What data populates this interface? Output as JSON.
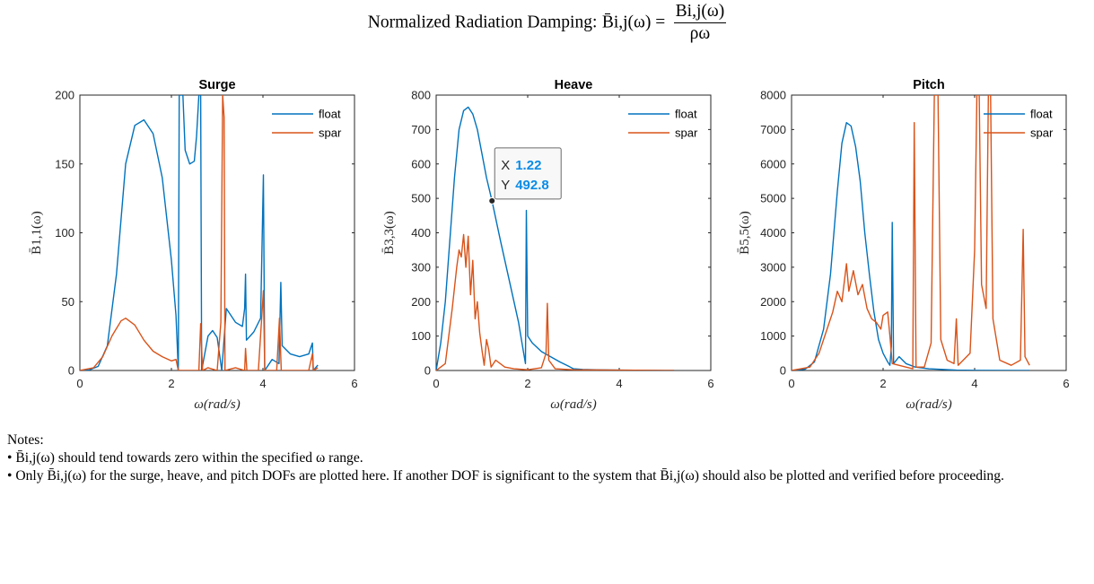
{
  "title": {
    "lead": "Normalized Radiation Damping:",
    "lhs": "B̄i,j(ω) =",
    "numerator": "Bi,j(ω)",
    "denominator": "ρω"
  },
  "colors": {
    "float": "#0072bd",
    "spar": "#d95319"
  },
  "notes": {
    "heading": "Notes:",
    "line1": "• B̄i,j(ω) should tend towards zero within the specified ω range.",
    "line2": "• Only B̄i,j(ω) for the surge, heave, and pitch DOFs are plotted here. If another DOF is significant to the system that B̄i,j(ω) should also be plotted and verified before proceeding."
  },
  "chart_data": [
    {
      "type": "line",
      "title": "Surge",
      "xlabel": "ω(rad/s)",
      "ylabel": "B̄1,1(ω)",
      "xlim": [
        0,
        6
      ],
      "ylim": [
        0,
        200
      ],
      "xticks": [
        0,
        2,
        4,
        6
      ],
      "yticks": [
        0,
        50,
        100,
        150,
        200
      ],
      "legend_position": "top-right",
      "series": [
        {
          "name": "float",
          "points": [
            [
              0,
              0
            ],
            [
              0.2,
              0.3
            ],
            [
              0.4,
              3
            ],
            [
              0.6,
              18
            ],
            [
              0.8,
              70
            ],
            [
              1.0,
              150
            ],
            [
              1.2,
              178
            ],
            [
              1.4,
              182
            ],
            [
              1.6,
              172
            ],
            [
              1.8,
              140
            ],
            [
              2.0,
              80
            ],
            [
              2.1,
              40
            ],
            [
              2.15,
              0
            ],
            [
              2.17,
              200
            ],
            [
              2.25,
              200
            ],
            [
              2.3,
              160
            ],
            [
              2.4,
              150
            ],
            [
              2.5,
              152
            ],
            [
              2.55,
              170
            ],
            [
              2.6,
              200
            ],
            [
              2.64,
              200
            ],
            [
              2.66,
              0
            ],
            [
              2.8,
              25
            ],
            [
              2.9,
              29
            ],
            [
              3.0,
              24
            ],
            [
              3.1,
              0
            ],
            [
              3.2,
              45
            ],
            [
              3.4,
              35
            ],
            [
              3.55,
              32
            ],
            [
              3.6,
              45
            ],
            [
              3.62,
              70
            ],
            [
              3.64,
              22
            ],
            [
              3.8,
              28
            ],
            [
              3.95,
              38
            ],
            [
              4.01,
              142
            ],
            [
              4.04,
              0
            ],
            [
              4.2,
              8
            ],
            [
              4.35,
              5
            ],
            [
              4.39,
              64
            ],
            [
              4.42,
              18
            ],
            [
              4.6,
              12
            ],
            [
              4.8,
              10
            ],
            [
              5.0,
              12
            ],
            [
              5.08,
              20
            ],
            [
              5.1,
              0
            ],
            [
              5.2,
              4
            ]
          ]
        },
        {
          "name": "spar",
          "points": [
            [
              0,
              0
            ],
            [
              0.3,
              2
            ],
            [
              0.5,
              10
            ],
            [
              0.7,
              25
            ],
            [
              0.9,
              36
            ],
            [
              1.0,
              38
            ],
            [
              1.2,
              33
            ],
            [
              1.4,
              22
            ],
            [
              1.6,
              14
            ],
            [
              1.8,
              10
            ],
            [
              2.0,
              7
            ],
            [
              2.1,
              8
            ],
            [
              2.15,
              0
            ],
            [
              2.6,
              0
            ],
            [
              2.64,
              34
            ],
            [
              2.68,
              0
            ],
            [
              2.8,
              2
            ],
            [
              3.0,
              0
            ],
            [
              3.08,
              35
            ],
            [
              3.12,
              200
            ],
            [
              3.15,
              184
            ],
            [
              3.17,
              0
            ],
            [
              3.4,
              2
            ],
            [
              3.6,
              0
            ],
            [
              3.62,
              16
            ],
            [
              3.65,
              0
            ],
            [
              3.9,
              0
            ],
            [
              4.01,
              58
            ],
            [
              4.04,
              0
            ],
            [
              4.3,
              0
            ],
            [
              4.36,
              38
            ],
            [
              4.4,
              0
            ],
            [
              5.0,
              0
            ],
            [
              5.08,
              12
            ],
            [
              5.1,
              0
            ],
            [
              5.2,
              2
            ]
          ]
        }
      ]
    },
    {
      "type": "line",
      "title": "Heave",
      "xlabel": "ω(rad/s)",
      "ylabel": "B̄3,3(ω)",
      "xlim": [
        0,
        6
      ],
      "ylim": [
        0,
        800
      ],
      "xticks": [
        0,
        2,
        4,
        6
      ],
      "yticks": [
        0,
        100,
        200,
        300,
        400,
        500,
        600,
        700,
        800
      ],
      "legend_position": "top-right",
      "datatip": {
        "x_label": "X",
        "x": "1.22",
        "y_label": "Y",
        "y": "492.8",
        "point": [
          1.22,
          492.8
        ]
      },
      "series": [
        {
          "name": "float",
          "points": [
            [
              0,
              0
            ],
            [
              0.1,
              80
            ],
            [
              0.2,
              200
            ],
            [
              0.3,
              380
            ],
            [
              0.4,
              560
            ],
            [
              0.5,
              700
            ],
            [
              0.6,
              755
            ],
            [
              0.7,
              765
            ],
            [
              0.8,
              745
            ],
            [
              0.9,
              700
            ],
            [
              1.0,
              630
            ],
            [
              1.1,
              560
            ],
            [
              1.22,
              493
            ],
            [
              1.4,
              380
            ],
            [
              1.6,
              260
            ],
            [
              1.8,
              140
            ],
            [
              1.9,
              60
            ],
            [
              1.95,
              20
            ],
            [
              1.97,
              465
            ],
            [
              2.0,
              100
            ],
            [
              2.1,
              80
            ],
            [
              2.3,
              55
            ],
            [
              2.5,
              40
            ],
            [
              2.7,
              25
            ],
            [
              2.9,
              12
            ],
            [
              3.0,
              5
            ],
            [
              3.2,
              3
            ],
            [
              3.5,
              2
            ],
            [
              4.0,
              1
            ],
            [
              5.0,
              0
            ],
            [
              5.2,
              0
            ]
          ]
        },
        {
          "name": "spar",
          "points": [
            [
              0,
              0
            ],
            [
              0.2,
              20
            ],
            [
              0.35,
              180
            ],
            [
              0.45,
              300
            ],
            [
              0.5,
              350
            ],
            [
              0.55,
              330
            ],
            [
              0.6,
              395
            ],
            [
              0.65,
              300
            ],
            [
              0.7,
              390
            ],
            [
              0.75,
              220
            ],
            [
              0.8,
              320
            ],
            [
              0.85,
              150
            ],
            [
              0.9,
              200
            ],
            [
              0.95,
              110
            ],
            [
              1.0,
              60
            ],
            [
              1.05,
              15
            ],
            [
              1.1,
              90
            ],
            [
              1.15,
              60
            ],
            [
              1.2,
              10
            ],
            [
              1.3,
              30
            ],
            [
              1.5,
              10
            ],
            [
              1.7,
              5
            ],
            [
              2.0,
              2
            ],
            [
              2.3,
              8
            ],
            [
              2.4,
              50
            ],
            [
              2.43,
              195
            ],
            [
              2.46,
              30
            ],
            [
              2.6,
              5
            ],
            [
              3.0,
              2
            ],
            [
              4.0,
              1
            ],
            [
              5.0,
              0
            ],
            [
              5.2,
              0
            ]
          ]
        }
      ]
    },
    {
      "type": "line",
      "title": "Pitch",
      "xlabel": "ω(rad/s)",
      "ylabel": "B̄5,5(ω)",
      "xlim": [
        0,
        6
      ],
      "ylim": [
        0,
        8000
      ],
      "xticks": [
        0,
        2,
        4,
        6
      ],
      "yticks": [
        0,
        1000,
        2000,
        3000,
        4000,
        5000,
        6000,
        7000,
        8000
      ],
      "legend_position": "top-right",
      "series": [
        {
          "name": "float",
          "points": [
            [
              0,
              0
            ],
            [
              0.3,
              40
            ],
            [
              0.5,
              250
            ],
            [
              0.7,
              1200
            ],
            [
              0.85,
              2800
            ],
            [
              1.0,
              5200
            ],
            [
              1.1,
              6600
            ],
            [
              1.2,
              7200
            ],
            [
              1.3,
              7100
            ],
            [
              1.4,
              6500
            ],
            [
              1.5,
              5500
            ],
            [
              1.6,
              4000
            ],
            [
              1.7,
              2800
            ],
            [
              1.8,
              1700
            ],
            [
              1.9,
              900
            ],
            [
              2.0,
              500
            ],
            [
              2.1,
              250
            ],
            [
              2.15,
              150
            ],
            [
              2.18,
              700
            ],
            [
              2.2,
              4300
            ],
            [
              2.23,
              200
            ],
            [
              2.35,
              400
            ],
            [
              2.5,
              200
            ],
            [
              2.7,
              100
            ],
            [
              3.0,
              50
            ],
            [
              3.3,
              30
            ],
            [
              3.6,
              10
            ],
            [
              4.0,
              5
            ],
            [
              5.0,
              0
            ],
            [
              5.2,
              0
            ]
          ]
        },
        {
          "name": "spar",
          "points": [
            [
              0,
              0
            ],
            [
              0.4,
              100
            ],
            [
              0.6,
              500
            ],
            [
              0.8,
              1300
            ],
            [
              0.9,
              1700
            ],
            [
              1.0,
              2300
            ],
            [
              1.1,
              2000
            ],
            [
              1.2,
              3100
            ],
            [
              1.25,
              2300
            ],
            [
              1.35,
              2900
            ],
            [
              1.45,
              2200
            ],
            [
              1.55,
              2500
            ],
            [
              1.65,
              1800
            ],
            [
              1.75,
              1500
            ],
            [
              1.85,
              1400
            ],
            [
              1.95,
              1200
            ],
            [
              2.0,
              1600
            ],
            [
              2.1,
              1700
            ],
            [
              2.15,
              1000
            ],
            [
              2.2,
              200
            ],
            [
              2.5,
              100
            ],
            [
              2.65,
              50
            ],
            [
              2.68,
              7200
            ],
            [
              2.72,
              100
            ],
            [
              2.9,
              100
            ],
            [
              3.05,
              800
            ],
            [
              3.12,
              8000
            ],
            [
              3.2,
              8000
            ],
            [
              3.26,
              900
            ],
            [
              3.4,
              300
            ],
            [
              3.55,
              200
            ],
            [
              3.6,
              1500
            ],
            [
              3.64,
              150
            ],
            [
              3.9,
              500
            ],
            [
              4.0,
              3500
            ],
            [
              4.05,
              8000
            ],
            [
              4.1,
              8000
            ],
            [
              4.15,
              2500
            ],
            [
              4.25,
              1800
            ],
            [
              4.3,
              8000
            ],
            [
              4.35,
              8000
            ],
            [
              4.4,
              1500
            ],
            [
              4.55,
              300
            ],
            [
              4.8,
              150
            ],
            [
              5.0,
              300
            ],
            [
              5.06,
              4100
            ],
            [
              5.1,
              400
            ],
            [
              5.2,
              150
            ]
          ]
        }
      ]
    }
  ]
}
